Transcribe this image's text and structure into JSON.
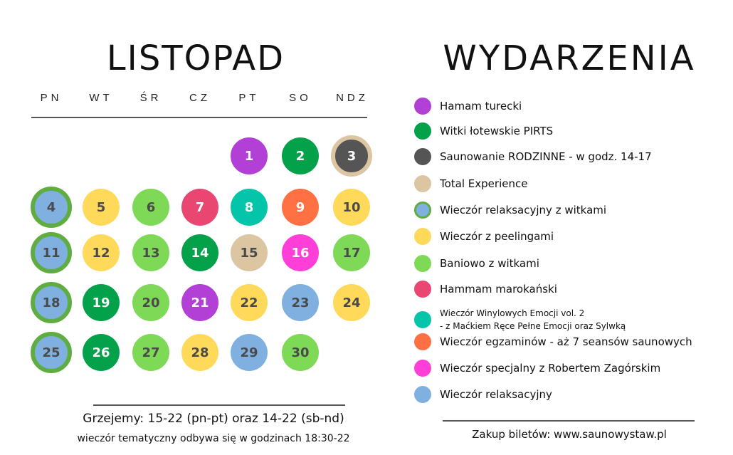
{
  "calendar": {
    "title": "LISTOPAD",
    "weekdays": [
      "PN",
      "WT",
      "ŚR",
      "CZ",
      "PT",
      "SO",
      "NDZ"
    ],
    "days": [
      {
        "day": "1",
        "event": "hamam_turecki"
      },
      {
        "day": "2",
        "event": "witki_pirts"
      },
      {
        "day": "3",
        "event": "saunowanie_rodzinne_total"
      },
      {
        "day": "4",
        "event": "relaks_witki"
      },
      {
        "day": "5",
        "event": "peelingi"
      },
      {
        "day": "6",
        "event": "baniowo"
      },
      {
        "day": "7",
        "event": "hammam_marokanski"
      },
      {
        "day": "8",
        "event": "winylowe_emocje"
      },
      {
        "day": "9",
        "event": "egzaminy"
      },
      {
        "day": "10",
        "event": "peelingi"
      },
      {
        "day": "11",
        "event": "relaks_witki"
      },
      {
        "day": "12",
        "event": "peelingi"
      },
      {
        "day": "13",
        "event": "baniowo"
      },
      {
        "day": "14",
        "event": "witki_pirts"
      },
      {
        "day": "15",
        "event": "total_experience"
      },
      {
        "day": "16",
        "event": "specjalny_zagorski"
      },
      {
        "day": "17",
        "event": "baniowo"
      },
      {
        "day": "18",
        "event": "relaks_witki"
      },
      {
        "day": "19",
        "event": "witki_pirts"
      },
      {
        "day": "20",
        "event": "baniowo"
      },
      {
        "day": "21",
        "event": "hamam_turecki"
      },
      {
        "day": "22",
        "event": "peelingi"
      },
      {
        "day": "23",
        "event": "relaks"
      },
      {
        "day": "24",
        "event": "peelingi"
      },
      {
        "day": "25",
        "event": "relaks_witki"
      },
      {
        "day": "26",
        "event": "witki_pirts"
      },
      {
        "day": "27",
        "event": "baniowo"
      },
      {
        "day": "28",
        "event": "peelingi"
      },
      {
        "day": "29",
        "event": "relaks"
      },
      {
        "day": "30",
        "event": "baniowo"
      }
    ],
    "footer": {
      "hours": "Grzejemy: 15-22 (pn-pt) oraz 14-22 (sb-nd)",
      "theme_note": "wieczór tematyczny odbywa się w godzinach 18:30-22"
    }
  },
  "events": {
    "title": "WYDARZENIA",
    "items": [
      {
        "label": "Hamam turecki",
        "color": "#b23fd6"
      },
      {
        "label": "Witki łotewskie PIRTS",
        "color": "#02a14a"
      },
      {
        "label": "Saunowanie RODZINNE - w godz. 14-17",
        "color": "#555555"
      },
      {
        "label": "Total Experience",
        "color": "#dcc5a1"
      },
      {
        "label": "Wieczór relaksacyjny z witkami",
        "color": "#7fb0e0",
        "outline": "#5fad41"
      },
      {
        "label": "Wieczór z peelingami",
        "color": "#ffd95a"
      },
      {
        "label": "Baniowo z witkami",
        "color": "#7ed957"
      },
      {
        "label": "Hammam marokański",
        "color": "#e94672"
      },
      {
        "label": "Wieczór Winylowych Emocji vol. 2",
        "label2": "- z Maćkiem Ręce Pełne Emocji oraz Sylwką",
        "color": "#04c4aa"
      },
      {
        "label": "Wieczór egzaminów - aż 7 seansów saunowych",
        "color": "#ff7043"
      },
      {
        "label": "Wieczór specjalny z Robertem Zagórskim",
        "color": "#ff3fd8"
      },
      {
        "label": "Wieczór relaksacyjny",
        "color": "#7fb0e0"
      }
    ],
    "footer": "Zakup biletów: www.saunowystaw.pl"
  }
}
